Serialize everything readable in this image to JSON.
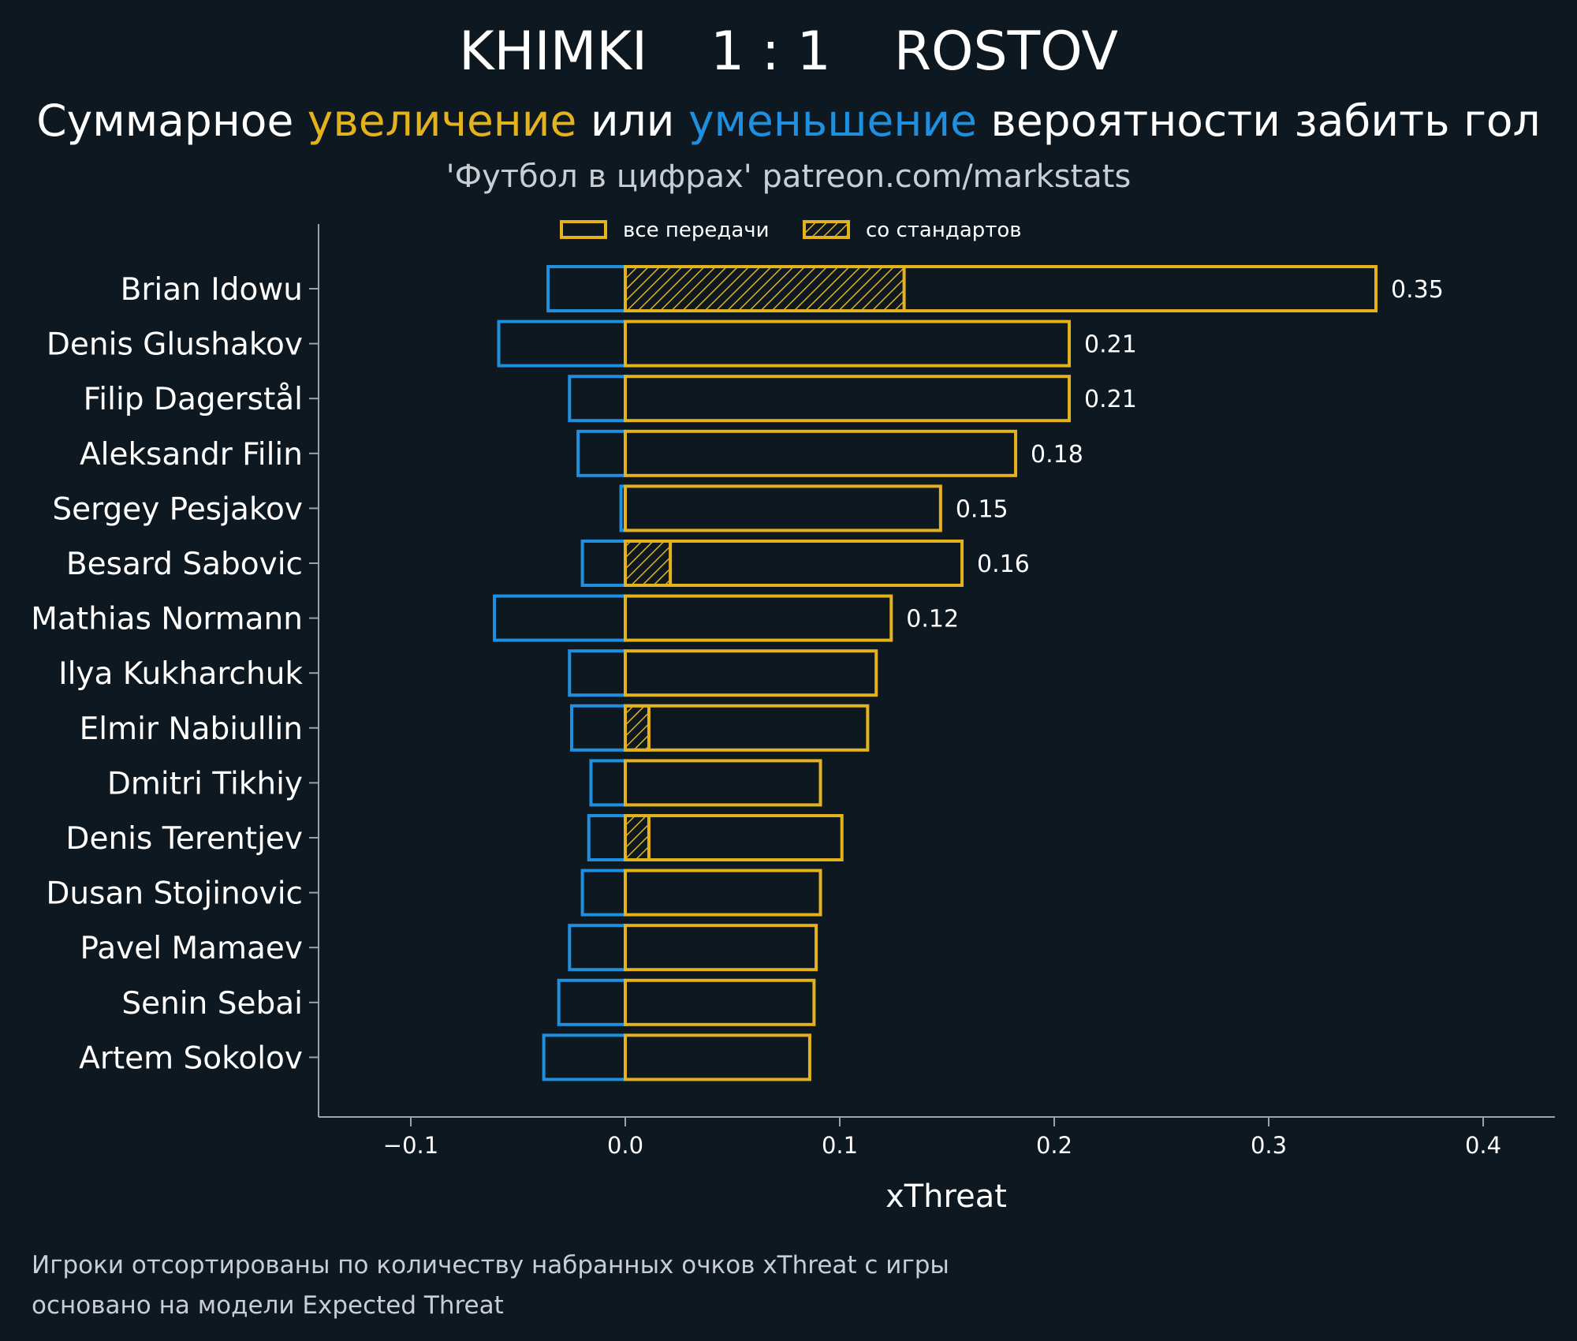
{
  "header": {
    "home_team": "KHIMKI",
    "score": "1 : 1",
    "away_team": "ROSTOV",
    "subtitle_part1": "Суммарное ",
    "subtitle_increase": "увеличение",
    "subtitle_part2": " или ",
    "subtitle_decrease": "уменьшение",
    "subtitle_part3": " вероятности забить гол",
    "credit": "'Футбол в цифрах' patreon.com/markstats"
  },
  "colors": {
    "background": "#0e1821",
    "increase": "#e3b21d",
    "decrease": "#1f8fdf",
    "axis": "#9aa3ab"
  },
  "legend": {
    "all_passes": "все передачи",
    "set_pieces": "со стандартов"
  },
  "chart_data": {
    "type": "bar",
    "orientation": "horizontal",
    "xlabel": "xThreat",
    "xlim": [
      -0.15,
      0.43
    ],
    "xticks": [
      -0.1,
      0.0,
      0.1,
      0.2,
      0.3,
      0.4
    ],
    "xtick_labels": [
      "−0.1",
      "0.0",
      "0.1",
      "0.2",
      "0.3",
      "0.4"
    ],
    "players": [
      {
        "name": "Brian Idowu",
        "positive": 0.35,
        "negative": -0.036,
        "set_piece": 0.13,
        "label": "0.35"
      },
      {
        "name": "Denis Glushakov",
        "positive": 0.207,
        "negative": -0.059,
        "set_piece": 0,
        "label": "0.21"
      },
      {
        "name": "Filip Dagerstål",
        "positive": 0.207,
        "negative": -0.026,
        "set_piece": 0,
        "label": "0.21"
      },
      {
        "name": "Aleksandr Filin",
        "positive": 0.182,
        "negative": -0.022,
        "set_piece": 0,
        "label": "0.18"
      },
      {
        "name": "Sergey Pesjakov",
        "positive": 0.147,
        "negative": -0.002,
        "set_piece": 0,
        "label": "0.15"
      },
      {
        "name": "Besard Sabovic",
        "positive": 0.157,
        "negative": -0.02,
        "set_piece": 0.021,
        "label": "0.16"
      },
      {
        "name": "Mathias Normann",
        "positive": 0.124,
        "negative": -0.061,
        "set_piece": 0,
        "label": "0.12"
      },
      {
        "name": "Ilya Kukharchuk",
        "positive": 0.117,
        "negative": -0.026,
        "set_piece": 0,
        "label": ""
      },
      {
        "name": "Elmir Nabiullin",
        "positive": 0.113,
        "negative": -0.025,
        "set_piece": 0.011,
        "label": ""
      },
      {
        "name": "Dmitri Tikhiy",
        "positive": 0.091,
        "negative": -0.016,
        "set_piece": 0,
        "label": ""
      },
      {
        "name": "Denis Terentjev",
        "positive": 0.101,
        "negative": -0.017,
        "set_piece": 0.011,
        "label": ""
      },
      {
        "name": "Dusan Stojinovic",
        "positive": 0.091,
        "negative": -0.02,
        "set_piece": 0,
        "label": ""
      },
      {
        "name": "Pavel Mamaev",
        "positive": 0.089,
        "negative": -0.026,
        "set_piece": 0,
        "label": ""
      },
      {
        "name": "Senin Sebai",
        "positive": 0.088,
        "negative": -0.031,
        "set_piece": 0,
        "label": ""
      },
      {
        "name": "Artem Sokolov",
        "positive": 0.086,
        "negative": -0.038,
        "set_piece": 0,
        "label": ""
      }
    ]
  },
  "footer": {
    "line1": "Игроки отсортированы по количеству набранных очков xThreat с игры",
    "line2": "основано на модели Expected Threat"
  }
}
